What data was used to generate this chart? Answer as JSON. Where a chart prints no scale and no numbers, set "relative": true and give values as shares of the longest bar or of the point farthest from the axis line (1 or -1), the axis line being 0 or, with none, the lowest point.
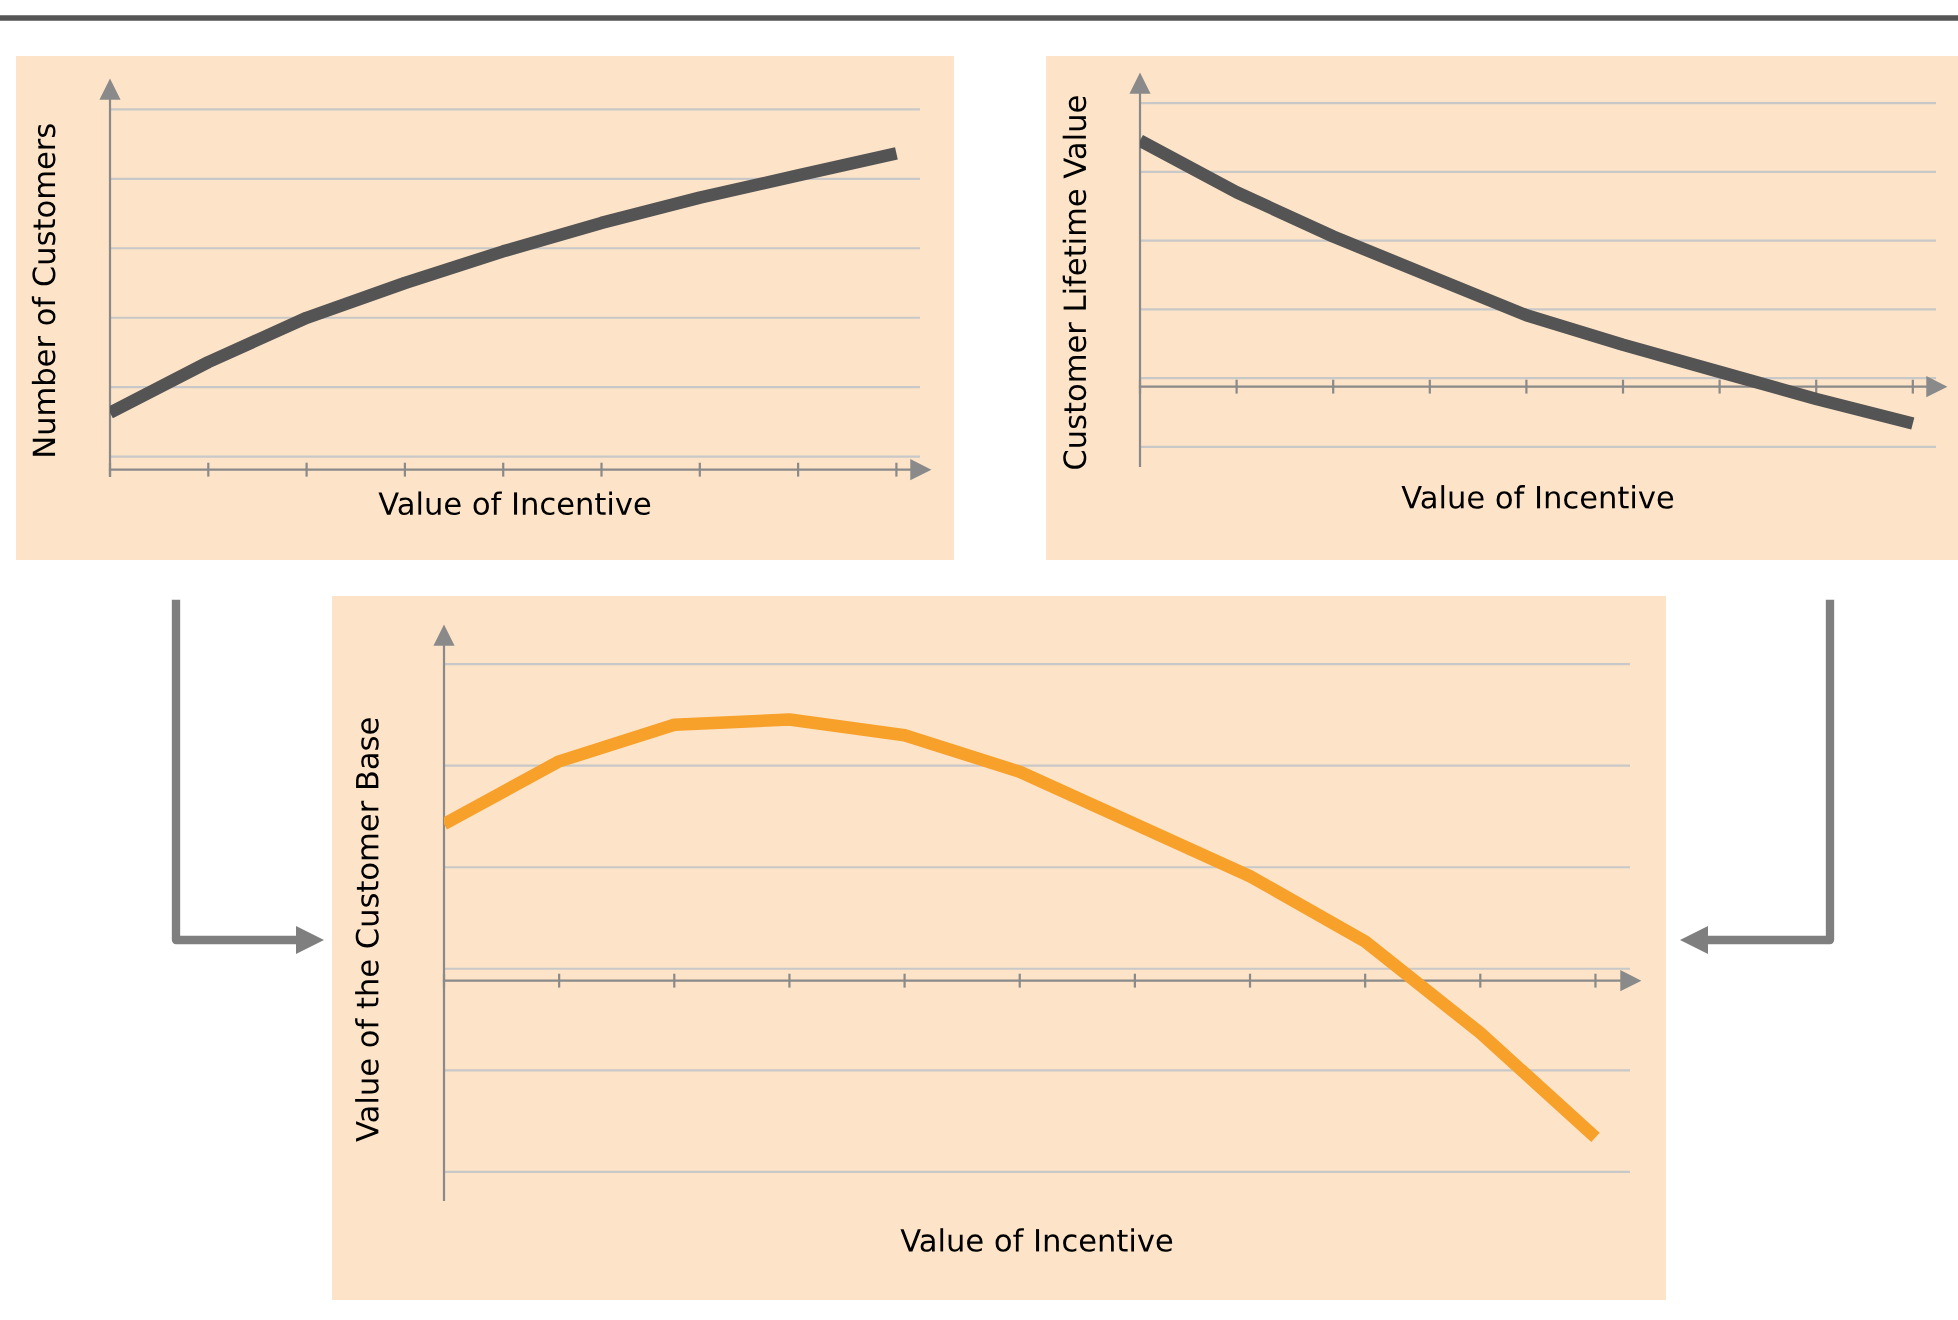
{
  "chart_data": [
    {
      "type": "line",
      "relative": true,
      "xlabel": "Value of Incentive",
      "ylabel": "Number of Customers",
      "grid": "y",
      "marker": "none",
      "line_style": "solid",
      "categories": [
        null,
        null,
        null,
        null,
        null,
        null,
        null,
        null,
        null
      ],
      "series": [
        {
          "color": "#545454",
          "values": [
            0.18,
            0.34,
            0.48,
            0.59,
            0.69,
            0.78,
            0.86,
            0.93,
            1.0
          ]
        }
      ]
    },
    {
      "type": "line",
      "relative": true,
      "xlabel": "Value of Incentive",
      "ylabel": "Customer Lifetime Value",
      "grid": "y",
      "marker": "none",
      "line_style": "solid",
      "categories": [
        null,
        null,
        null,
        null,
        null,
        null,
        null,
        null,
        null
      ],
      "series": [
        {
          "color": "#545454",
          "values": [
            1.0,
            0.79,
            0.61,
            0.45,
            0.29,
            0.17,
            0.06,
            -0.05,
            -0.15
          ]
        }
      ]
    },
    {
      "type": "line",
      "relative": true,
      "xlabel": "Value of Incentive",
      "ylabel": "Value of the Customer Base",
      "grid": "y",
      "marker": "none",
      "line_style": "solid",
      "categories": [
        null,
        null,
        null,
        null,
        null,
        null,
        null,
        null,
        null,
        null,
        null
      ],
      "series": [
        {
          "color": "#f7a02a",
          "values": [
            0.6,
            0.84,
            0.98,
            1.0,
            0.94,
            0.8,
            0.6,
            0.4,
            0.15,
            -0.2,
            -0.6
          ]
        }
      ]
    }
  ]
}
